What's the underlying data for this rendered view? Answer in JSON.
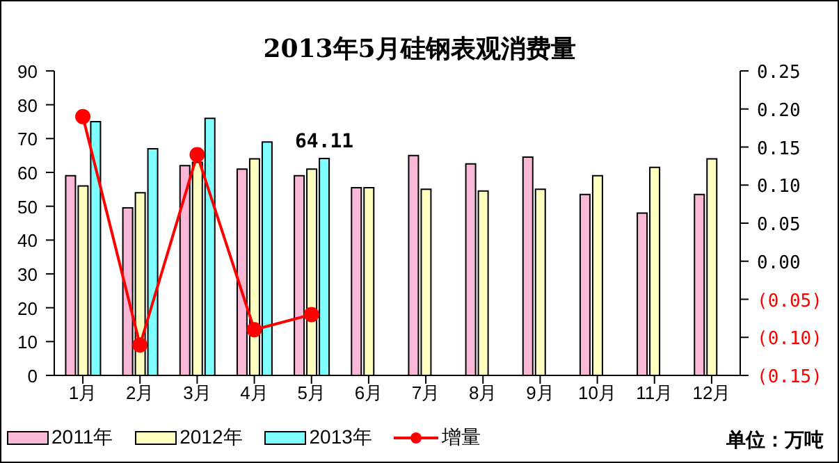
{
  "chart_data": {
    "type": "bar",
    "title": "2013年5月硅钢表观消费量",
    "categories": [
      "1月",
      "2月",
      "3月",
      "4月",
      "5月",
      "6月",
      "7月",
      "8月",
      "9月",
      "10月",
      "11月",
      "12月"
    ],
    "series": [
      {
        "name": "2011年",
        "color": "#f9b8d6",
        "values": [
          59,
          49.5,
          62,
          61,
          59,
          55.5,
          65,
          62.5,
          64.5,
          53.5,
          48,
          53.5
        ]
      },
      {
        "name": "2012年",
        "color": "#ffffc0",
        "values": [
          56,
          54,
          63,
          64,
          61,
          55.5,
          55,
          54.5,
          55,
          59,
          61.5,
          64
        ]
      },
      {
        "name": "2013年",
        "color": "#80ffff",
        "values": [
          75,
          67,
          76,
          69,
          64.11,
          null,
          null,
          null,
          null,
          null,
          null,
          null
        ],
        "value_labels": [
          null,
          null,
          null,
          null,
          "64.11",
          null,
          null,
          null,
          null,
          null,
          null,
          null
        ]
      },
      {
        "name": "增量",
        "type": "line",
        "axis": "y2",
        "color": "#ff0000",
        "marker": "circle",
        "values": [
          0.19,
          -0.11,
          0.14,
          -0.09,
          -0.07,
          null,
          null,
          null,
          null,
          null,
          null,
          null
        ]
      }
    ],
    "ylim": [
      0,
      90
    ],
    "yticks": [
      0,
      10,
      20,
      30,
      40,
      50,
      60,
      70,
      80,
      90
    ],
    "y2lim": [
      -0.15,
      0.25
    ],
    "y2ticks": [
      {
        "value": -0.15,
        "label": "(0.15)"
      },
      {
        "value": -0.1,
        "label": "(0.10)"
      },
      {
        "value": -0.05,
        "label": "(0.05)"
      },
      {
        "value": 0,
        "label": "0.00"
      },
      {
        "value": 0.05,
        "label": "0.05"
      },
      {
        "value": 0.1,
        "label": "0.10"
      },
      {
        "value": 0.15,
        "label": "0.15"
      },
      {
        "value": 0.2,
        "label": "0.20"
      },
      {
        "value": 0.25,
        "label": "0.25"
      }
    ],
    "legend": "bottom",
    "annotations": [
      "单位：万吨"
    ]
  }
}
